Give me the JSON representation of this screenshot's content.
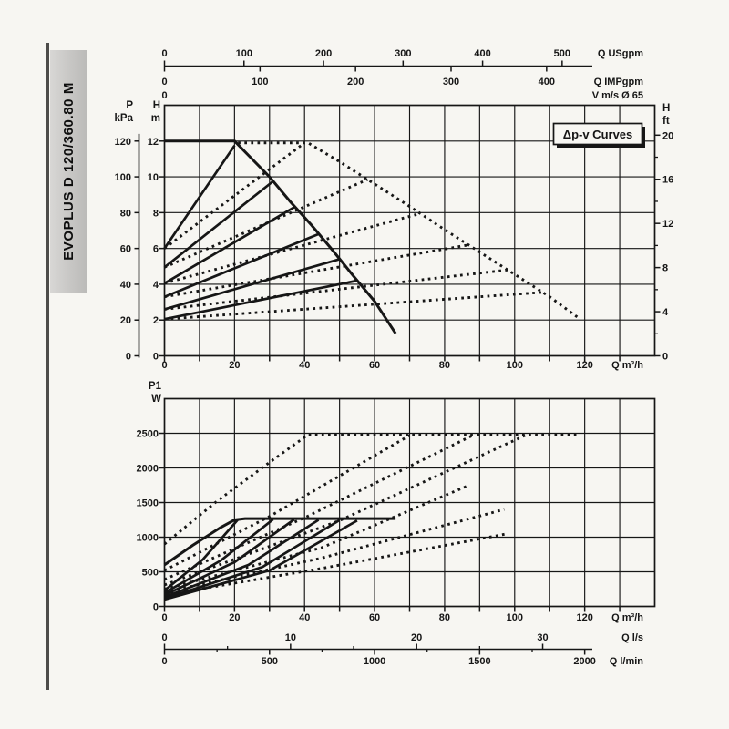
{
  "page": {
    "background": "#f7f6f2",
    "ink": "#161616"
  },
  "sidebar": {
    "model_label": "EVOPLUS D 120/360.80 M",
    "plate_color": "#c9c8c6"
  },
  "chart_data": [
    {
      "id": "head_flow",
      "type": "line",
      "annotation_box": "Δp-v Curves",
      "x_axis": {
        "unit": "Q m³/h",
        "min": 0,
        "max": 140,
        "grid_step": 10,
        "tick_labels": [
          0,
          20,
          40,
          60,
          80,
          100,
          120
        ]
      },
      "y_axis_m": {
        "header": [
          "H",
          "m"
        ],
        "min": 0,
        "max": 14,
        "grid_step": 2,
        "tick_labels": [
          0,
          2,
          4,
          6,
          8,
          10,
          12
        ]
      },
      "y_axis_kpa": {
        "header": [
          "P",
          "kPa"
        ],
        "kpa_per_m": 10,
        "tick_labels": [
          0,
          20,
          40,
          60,
          80,
          100,
          120
        ]
      },
      "y_axis_ft": {
        "header": [
          "H",
          "ft"
        ],
        "tick_labels": [
          0,
          4,
          8,
          12,
          16,
          20
        ],
        "minor_ticks": [
          2,
          6,
          10,
          14,
          18
        ]
      },
      "secondary_x_axes": [
        {
          "unit": "Q USgpm",
          "m3h_per_unit": 0.2271,
          "tick_labels": [
            0,
            100,
            200,
            300,
            400,
            500
          ],
          "minor_ticks": [],
          "side": "above"
        },
        {
          "unit": "Q IMPgpm",
          "m3h_per_unit": 0.2728,
          "tick_labels": [
            0,
            100,
            200,
            300,
            400
          ],
          "minor_ticks": [],
          "side": "below"
        },
        {
          "unit": "V m/s Ø 65",
          "m3h_per_unit": 1,
          "tick_labels": [
            0
          ],
          "minor_ticks": [],
          "side": "row"
        }
      ],
      "solid_curves": [
        {
          "name": "single-max-envelope",
          "points": [
            [
              0,
              12
            ],
            [
              20,
              12
            ],
            [
              24,
              11.2
            ],
            [
              30,
              10
            ],
            [
              36,
              8.6
            ],
            [
              42,
              7.3
            ],
            [
              48,
              5.9
            ],
            [
              54,
              4.45
            ],
            [
              60,
              3.05
            ],
            [
              66,
              1.25
            ]
          ]
        },
        {
          "name": "dpv-set-1",
          "points": [
            [
              0,
              6
            ],
            [
              20,
              11.75
            ]
          ]
        },
        {
          "name": "dpv-set-2",
          "points": [
            [
              0,
              4.95
            ],
            [
              31,
              9.75
            ]
          ]
        },
        {
          "name": "dpv-set-3",
          "points": [
            [
              0,
              4.05
            ],
            [
              37,
              8.3
            ]
          ]
        },
        {
          "name": "dpv-set-4",
          "points": [
            [
              0,
              3.3
            ],
            [
              44,
              6.8
            ]
          ]
        },
        {
          "name": "dpv-set-5",
          "points": [
            [
              0,
              2.6
            ],
            [
              50,
              5.4
            ]
          ]
        },
        {
          "name": "dpv-set-6",
          "points": [
            [
              0,
              2.05
            ],
            [
              55,
              4.2
            ]
          ]
        }
      ],
      "dotted_curves": [
        {
          "name": "twin-max-envelope",
          "points": [
            [
              21,
              11.9
            ],
            [
              41,
              11.9
            ],
            [
              50,
              10.85
            ],
            [
              60,
              9.6
            ],
            [
              70,
              8.35
            ],
            [
              80,
              7.05
            ],
            [
              90,
              5.8
            ],
            [
              100,
              4.55
            ],
            [
              110,
              3.3
            ],
            [
              118,
              2.15
            ]
          ]
        },
        {
          "name": "twin-dpv-set-1",
          "points": [
            [
              0,
              6
            ],
            [
              40,
              11.9
            ]
          ]
        },
        {
          "name": "twin-dpv-set-2",
          "points": [
            [
              0,
              4.95
            ],
            [
              58,
              9.85
            ]
          ]
        },
        {
          "name": "twin-dpv-set-3",
          "points": [
            [
              0,
              4.05
            ],
            [
              73,
              7.95
            ]
          ]
        },
        {
          "name": "twin-dpv-set-4",
          "points": [
            [
              0,
              3.3
            ],
            [
              87,
              6.2
            ]
          ]
        },
        {
          "name": "twin-dpv-set-5",
          "points": [
            [
              0,
              2.6
            ],
            [
              98,
              4.8
            ]
          ]
        },
        {
          "name": "twin-dpv-set-6",
          "points": [
            [
              0,
              2.05
            ],
            [
              108,
              3.55
            ]
          ]
        }
      ]
    },
    {
      "id": "power",
      "type": "line",
      "y_axis": {
        "header": [
          "P1",
          "W"
        ],
        "min": 0,
        "max": 3000,
        "grid_step": 500,
        "tick_labels": [
          0,
          500,
          1000,
          1500,
          2000,
          2500
        ]
      },
      "x_axis": {
        "unit": "Q m³/h",
        "min": 0,
        "max": 140,
        "grid_step": 10,
        "tick_labels": [
          0,
          20,
          40,
          60,
          80,
          100,
          120
        ]
      },
      "secondary_x_axes": [
        {
          "unit": "Q l/s",
          "m3h_per_unit": 3.6,
          "tick_labels": [
            0,
            10,
            20,
            30
          ],
          "minor_ticks": [
            5,
            15,
            25
          ],
          "side": "above"
        },
        {
          "unit": "Q l/min",
          "m3h_per_unit": 0.06,
          "tick_labels": [
            0,
            500,
            1000,
            1500,
            2000
          ],
          "minor_ticks": [
            250,
            750,
            1250,
            1750
          ],
          "side": "below"
        }
      ],
      "solid_curves": [
        {
          "name": "single-max-power",
          "points": [
            [
              0,
              600
            ],
            [
              8,
              880
            ],
            [
              16,
              1140
            ],
            [
              20,
              1250
            ],
            [
              23,
              1268
            ],
            [
              66,
              1268
            ]
          ]
        },
        {
          "name": "power-set-1",
          "points": [
            [
              0,
              230
            ],
            [
              11,
              680
            ],
            [
              21,
              1255
            ]
          ]
        },
        {
          "name": "power-set-2",
          "points": [
            [
              0,
              195
            ],
            [
              16,
              660
            ],
            [
              31,
              1255
            ]
          ]
        },
        {
          "name": "power-set-3",
          "points": [
            [
              0,
              165
            ],
            [
              20,
              640
            ],
            [
              37,
              1255
            ]
          ]
        },
        {
          "name": "power-set-4",
          "points": [
            [
              0,
              135
            ],
            [
              24,
              600
            ],
            [
              44,
              1250
            ]
          ]
        },
        {
          "name": "power-set-5",
          "points": [
            [
              0,
              115
            ],
            [
              28,
              570
            ],
            [
              50,
              1245
            ]
          ]
        },
        {
          "name": "power-set-6",
          "points": [
            [
              0,
              100
            ],
            [
              30,
              520
            ],
            [
              55,
              1240
            ]
          ]
        }
      ],
      "dotted_curves": [
        {
          "name": "twin-max-power",
          "points": [
            [
              0,
              900
            ],
            [
              15,
              1520
            ],
            [
              30,
              2080
            ],
            [
              41,
              2480
            ],
            [
              118,
              2480
            ]
          ]
        },
        {
          "name": "twin-power-set-1",
          "points": [
            [
              0,
              520
            ],
            [
              30,
              1300
            ],
            [
              70,
              2470
            ]
          ]
        },
        {
          "name": "twin-power-set-2",
          "points": [
            [
              0,
              390
            ],
            [
              40,
              1280
            ],
            [
              88,
              2470
            ]
          ]
        },
        {
          "name": "twin-power-set-3",
          "points": [
            [
              0,
              310
            ],
            [
              50,
              1240
            ],
            [
              103,
              2470
            ]
          ]
        },
        {
          "name": "twin-power-set-4",
          "points": [
            [
              0,
              250
            ],
            [
              45,
              850
            ],
            [
              87,
              1750
            ]
          ]
        },
        {
          "name": "twin-power-set-5",
          "points": [
            [
              0,
              205
            ],
            [
              45,
              700
            ],
            [
              97,
              1400
            ]
          ]
        },
        {
          "name": "twin-power-set-6",
          "points": [
            [
              0,
              165
            ],
            [
              45,
              550
            ],
            [
              98,
              1050
            ]
          ]
        }
      ]
    }
  ]
}
